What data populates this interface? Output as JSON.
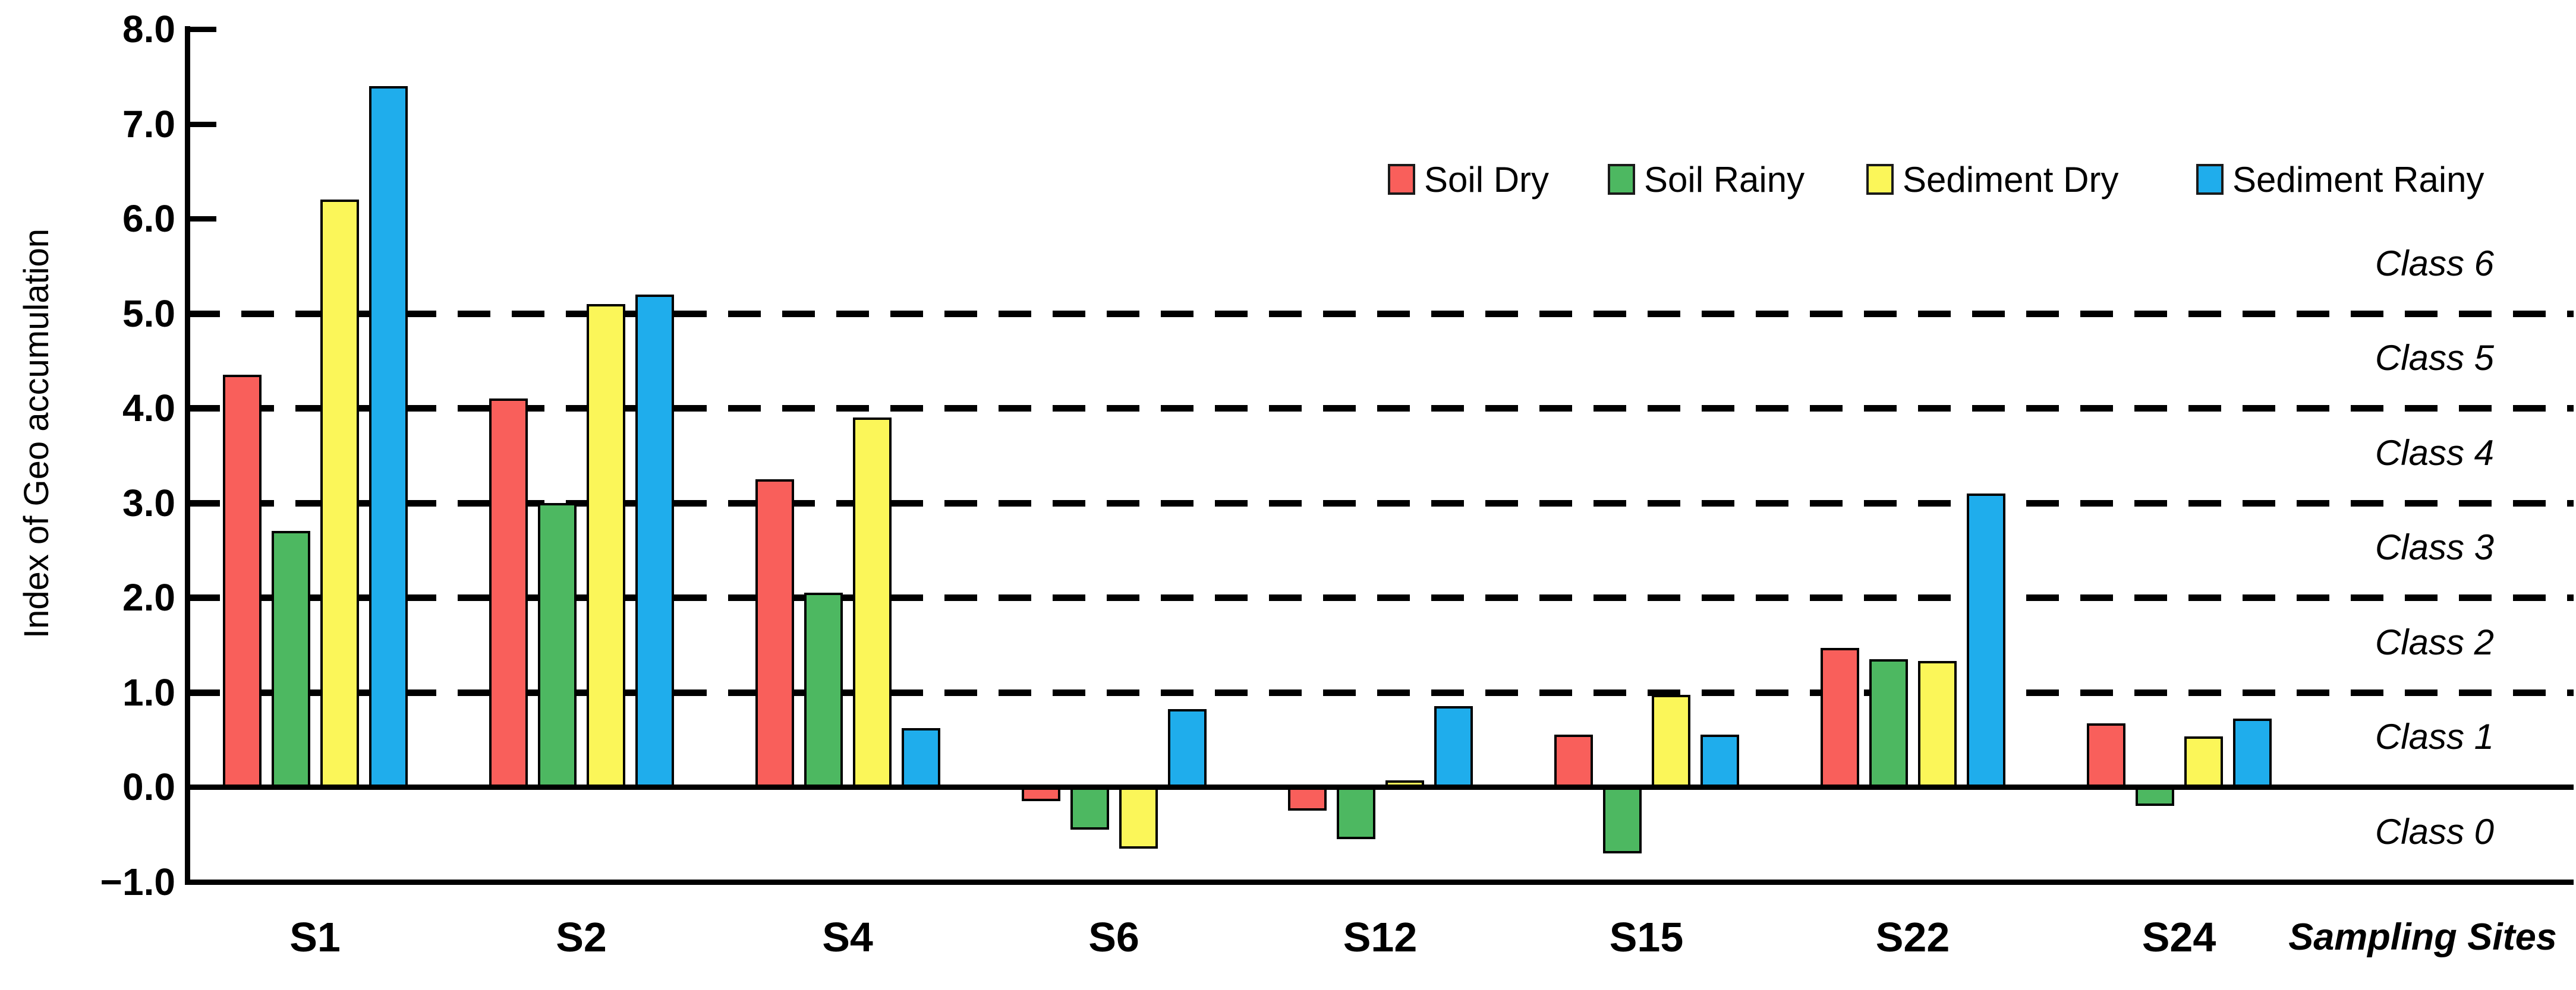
{
  "chart_data": {
    "type": "bar",
    "title": "",
    "ylabel": "Index of Geo accumulation",
    "xlabel": "Sampling Sites",
    "ylim": [
      -1.0,
      8.0
    ],
    "grid": "horizontal-dashed",
    "legend_position": "top-right",
    "categories": [
      "S1",
      "S2",
      "S4",
      "S6",
      "S12",
      "S15",
      "S22",
      "S24"
    ],
    "series": [
      {
        "name": "Soil Dry",
        "color": "#F95F5B",
        "values": [
          4.35,
          4.1,
          3.25,
          -0.15,
          -0.25,
          0.55,
          1.47,
          0.67
        ]
      },
      {
        "name": "Soil Rainy",
        "color": "#4DB861",
        "values": [
          2.7,
          3.0,
          2.05,
          -0.45,
          -0.55,
          -0.7,
          1.35,
          -0.2
        ]
      },
      {
        "name": "Sediment Dry",
        "color": "#FBF659",
        "values": [
          6.2,
          5.1,
          3.9,
          -0.65,
          0.07,
          0.97,
          1.33,
          0.53
        ]
      },
      {
        "name": "Sediment Rainy",
        "color": "#1FADEC",
        "values": [
          7.4,
          5.2,
          0.62,
          0.82,
          0.85,
          0.55,
          3.1,
          0.72
        ]
      }
    ],
    "yticks": [
      {
        "label": "8.0",
        "value": 8
      },
      {
        "label": "7.0",
        "value": 7
      },
      {
        "label": "6.0",
        "value": 6
      },
      {
        "label": "5.0",
        "value": 5
      },
      {
        "label": "4.0",
        "value": 4
      },
      {
        "label": "3.0",
        "value": 3
      },
      {
        "label": "2.0",
        "value": 2
      },
      {
        "label": "1.0",
        "value": 1
      },
      {
        "label": "0.0",
        "value": 0
      },
      {
        "label": "−1.0",
        "value": -1
      }
    ],
    "dashed_gridline_values": [
      1,
      2,
      3,
      4,
      5
    ],
    "solid_line_values": [
      0
    ],
    "class_bands": [
      {
        "label": "Class 6",
        "center_value": 5.5
      },
      {
        "label": "Class 5",
        "center_value": 4.5
      },
      {
        "label": "Class 4",
        "center_value": 3.5
      },
      {
        "label": "Class 3",
        "center_value": 2.5
      },
      {
        "label": "Class 2",
        "center_value": 1.5
      },
      {
        "label": "Class 1",
        "center_value": 0.5
      },
      {
        "label": "Class 0",
        "center_value": -0.5
      }
    ]
  }
}
